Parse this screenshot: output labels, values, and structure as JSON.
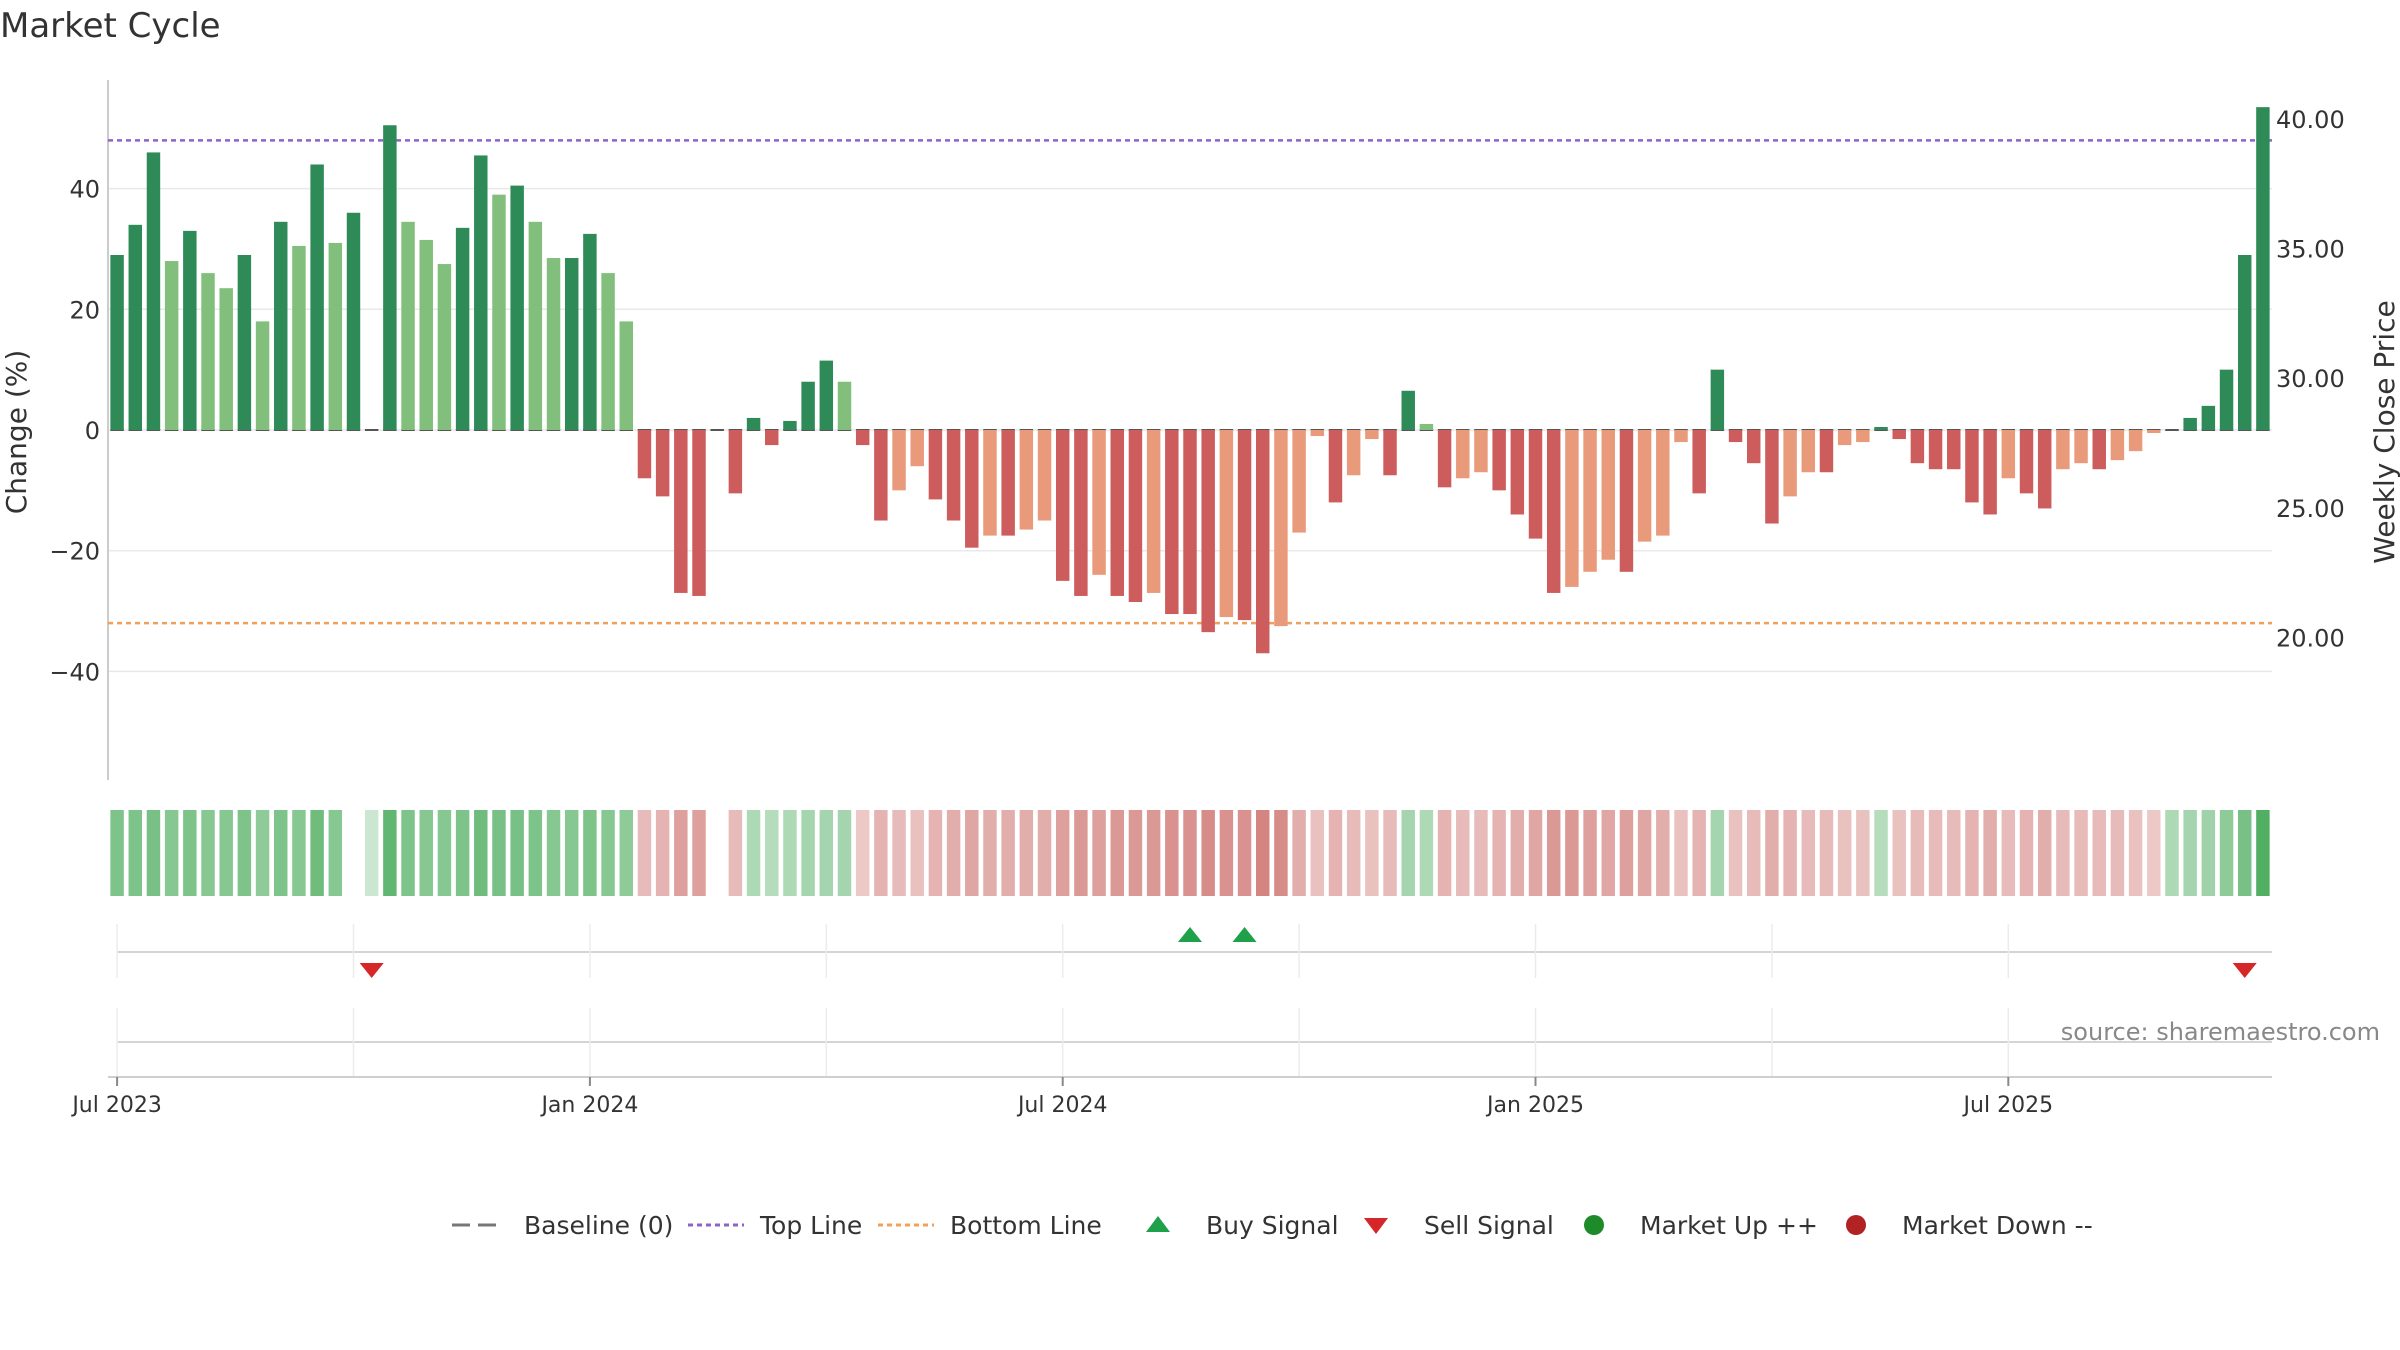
{
  "chart_data": {
    "type": "bar",
    "title": "Market Cycle",
    "y_left_label": "Change (%)",
    "y_right_label": "Weekly Close Price",
    "y_left_range": [
      -58,
      58
    ],
    "y_right_range": [
      14.5,
      41.5
    ],
    "y_left_ticks": [
      {
        "v": 40,
        "label": "40"
      },
      {
        "v": 20,
        "label": "20"
      },
      {
        "v": 0,
        "label": "0"
      },
      {
        "v": -20,
        "label": "−20"
      },
      {
        "v": -40,
        "label": "−40"
      }
    ],
    "y_right_ticks": [
      {
        "v": 40,
        "label": "40.00"
      },
      {
        "v": 35,
        "label": "35.00"
      },
      {
        "v": 30,
        "label": "30.00"
      },
      {
        "v": 25,
        "label": "25.00"
      },
      {
        "v": 20,
        "label": "20.00"
      }
    ],
    "top_line": 48,
    "bottom_line": -32,
    "week_count": 119,
    "x_ticks": [
      {
        "week": 1,
        "label": "Jul 2023"
      },
      {
        "week": 27,
        "label": "Jan 2024"
      },
      {
        "week": 53,
        "label": "Jul 2024"
      },
      {
        "week": 79,
        "label": "Jan 2025"
      },
      {
        "week": 105,
        "label": "Jul 2025"
      }
    ],
    "x_minor_weeks": [
      14,
      40,
      66,
      92
    ],
    "series": [
      {
        "name": "Change (%)",
        "values": [
          29,
          34,
          46,
          28,
          33,
          26,
          23.5,
          29,
          18,
          34.5,
          30.5,
          44,
          31,
          36,
          0,
          50.5,
          34.5,
          31.5,
          27.5,
          33.5,
          45.5,
          39,
          40.5,
          34.5,
          28.5,
          28.5,
          32.5,
          26,
          18,
          -8,
          -11,
          -27,
          -27.5,
          0,
          -10.5,
          2,
          -2.5,
          1.5,
          8,
          11.5,
          8,
          -2.5,
          -15,
          -10,
          -6,
          -11.5,
          -15,
          -19.5,
          -17.5,
          -17.5,
          -16.5,
          -15,
          -25,
          -27.5,
          -24,
          -27.5,
          -28.5,
          -27,
          -30.5,
          -30.5,
          -33.5,
          -31,
          -31.5,
          -37,
          -32.5,
          -17,
          -1,
          -12,
          -7.5,
          -1.5,
          -7.5,
          6.5,
          1,
          -9.5,
          -8,
          -7,
          -10,
          -14,
          -18,
          -27,
          -26,
          -23.5,
          -21.5,
          -23.5,
          -18.5,
          -17.5,
          -2,
          -10.5,
          10,
          -2,
          -5.5,
          -15.5,
          -11,
          -7,
          -7,
          -2.5,
          -2,
          0.5,
          -1.5,
          -5.5,
          -6.5,
          -6.5,
          -12,
          -14,
          -8,
          -10.5,
          -13,
          -6.5,
          -5.5,
          -6.5,
          -5,
          -3.5,
          -0.5,
          0,
          2,
          4,
          10,
          29,
          53.5
        ]
      }
    ],
    "signals": {
      "buy_weeks": [
        60,
        63
      ],
      "sell_weeks": [
        15,
        118
      ]
    },
    "heat_strip": {
      "gap_weeks": [
        14,
        34
      ],
      "values": [
        0.5,
        0.5,
        0.55,
        0.45,
        0.5,
        0.45,
        0.45,
        0.5,
        0.4,
        0.5,
        0.45,
        0.6,
        0.45,
        0.5,
        0,
        0.7,
        0.5,
        0.45,
        0.45,
        0.5,
        0.6,
        0.55,
        0.55,
        0.5,
        0.45,
        0.45,
        0.5,
        0.45,
        0.4,
        -0.25,
        -0.3,
        -0.45,
        -0.45,
        0,
        -0.25,
        0.2,
        0.15,
        0.2,
        0.25,
        0.25,
        0.25,
        -0.15,
        -0.3,
        -0.25,
        -0.2,
        -0.3,
        -0.35,
        -0.4,
        -0.35,
        -0.35,
        -0.35,
        -0.35,
        -0.45,
        -0.5,
        -0.45,
        -0.5,
        -0.5,
        -0.5,
        -0.55,
        -0.55,
        -0.6,
        -0.55,
        -0.55,
        -0.65,
        -0.6,
        -0.35,
        -0.2,
        -0.3,
        -0.25,
        -0.2,
        -0.25,
        0.25,
        0.2,
        -0.3,
        -0.25,
        -0.25,
        -0.3,
        -0.35,
        -0.4,
        -0.5,
        -0.5,
        -0.45,
        -0.4,
        -0.45,
        -0.4,
        -0.35,
        -0.2,
        -0.3,
        0.25,
        -0.2,
        -0.25,
        -0.35,
        -0.3,
        -0.25,
        -0.25,
        -0.2,
        -0.2,
        0.15,
        -0.2,
        -0.25,
        -0.25,
        -0.25,
        -0.3,
        -0.35,
        -0.25,
        -0.3,
        -0.35,
        -0.25,
        -0.25,
        -0.25,
        -0.25,
        -0.2,
        -0.15,
        0.2,
        0.25,
        0.3,
        0.4,
        0.55,
        0.8
      ]
    },
    "legend": {
      "position": "bottom-center",
      "items": [
        {
          "label": "Baseline (0)",
          "marker": "dash",
          "color": "#777777"
        },
        {
          "label": "Top Line",
          "marker": "dotted-line",
          "color": "#8e62c9"
        },
        {
          "label": "Bottom Line",
          "marker": "dotted-line",
          "color": "#f0a05a"
        },
        {
          "label": "Buy Signal",
          "marker": "triangle-up",
          "color": "#1fa14b"
        },
        {
          "label": "Sell Signal",
          "marker": "triangle-down",
          "color": "#d62728"
        },
        {
          "label": "Market Up ++",
          "marker": "circle",
          "color": "#1e8b2a"
        },
        {
          "label": "Market Down --",
          "marker": "circle",
          "color": "#b22222"
        }
      ]
    },
    "source": "source: sharemaestro.com",
    "grid": true
  },
  "colors": {
    "up_strong": "#2e8b57",
    "up_light": "#82bf7c",
    "down_strong": "#cd5c5c",
    "down_light": "#e99a7a",
    "top_line": "#8e62c9",
    "bottom_line": "#f0a05a",
    "buy": "#1fa14b",
    "sell": "#d62728"
  }
}
